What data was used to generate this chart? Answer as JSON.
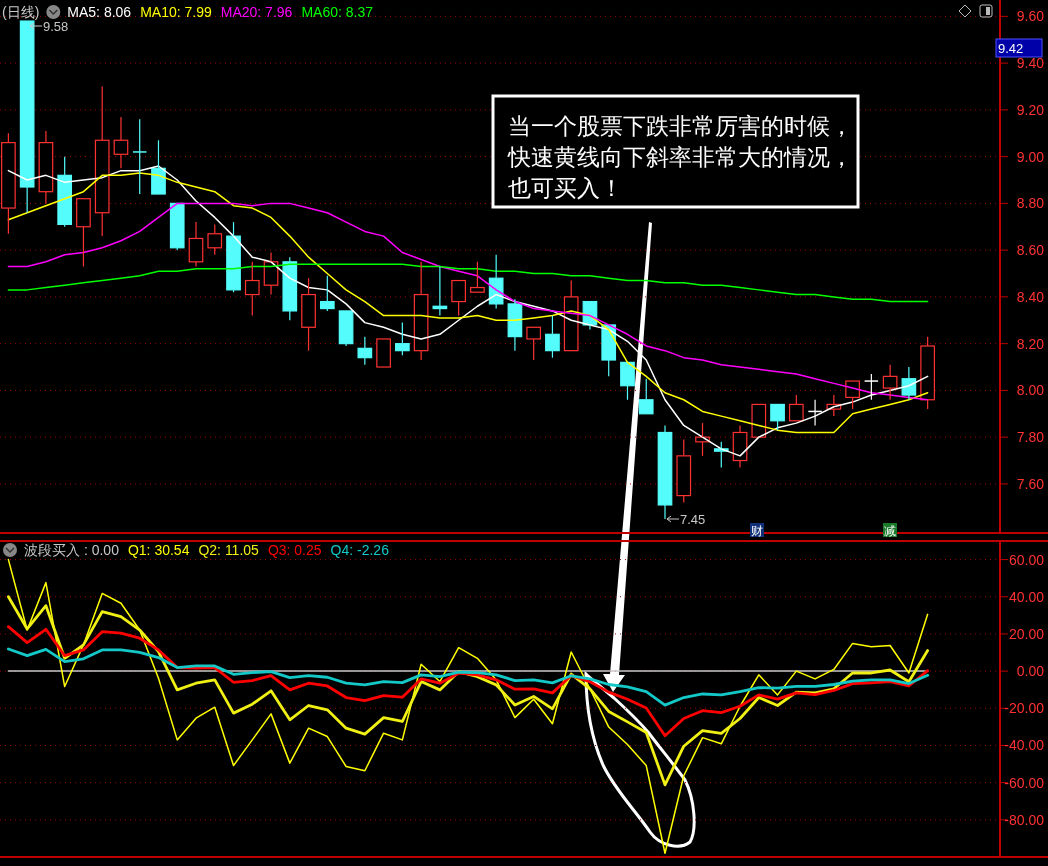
{
  "chart_data": [
    {
      "type": "candlestick",
      "title": "(日线)",
      "categories": [
        null,
        null,
        null,
        null,
        null,
        null,
        null,
        null,
        null,
        null,
        null,
        null,
        null,
        null,
        null,
        null,
        null,
        null,
        null,
        null,
        null,
        null,
        null,
        null,
        null,
        null,
        null,
        null,
        null,
        null,
        null,
        null,
        null,
        null,
        null,
        null,
        null,
        null,
        null,
        null,
        null,
        null,
        null,
        null,
        null,
        null,
        null,
        null,
        null,
        null
      ],
      "ohlc": [
        [
          8.78,
          9.1,
          8.67,
          9.06
        ],
        [
          9.58,
          9.58,
          8.76,
          8.87
        ],
        [
          8.85,
          9.11,
          8.8,
          9.06
        ],
        [
          8.92,
          9.0,
          8.7,
          8.71
        ],
        [
          8.7,
          8.82,
          8.53,
          8.82
        ],
        [
          8.76,
          9.3,
          8.66,
          9.07
        ],
        [
          9.01,
          9.17,
          8.95,
          9.07
        ],
        [
          9.02,
          9.16,
          8.84,
          9.02
        ],
        [
          8.95,
          9.07,
          8.84,
          8.84
        ],
        [
          8.8,
          8.8,
          8.6,
          8.61
        ],
        [
          8.55,
          8.72,
          8.53,
          8.65
        ],
        [
          8.61,
          8.71,
          8.58,
          8.67
        ],
        [
          8.66,
          8.72,
          8.42,
          8.43
        ],
        [
          8.41,
          8.55,
          8.32,
          8.47
        ],
        [
          8.45,
          8.59,
          8.41,
          8.55
        ],
        [
          8.55,
          8.57,
          8.3,
          8.34
        ],
        [
          8.27,
          8.48,
          8.17,
          8.41
        ],
        [
          8.38,
          8.49,
          8.34,
          8.35
        ],
        [
          8.34,
          8.34,
          8.19,
          8.2
        ],
        [
          8.18,
          8.23,
          8.11,
          8.14
        ],
        [
          8.1,
          8.22,
          8.1,
          8.22
        ],
        [
          8.2,
          8.29,
          8.15,
          8.17
        ],
        [
          8.17,
          8.55,
          8.13,
          8.41
        ],
        [
          8.36,
          8.53,
          8.32,
          8.35
        ],
        [
          8.38,
          8.47,
          8.32,
          8.47
        ],
        [
          8.42,
          8.55,
          8.42,
          8.44
        ],
        [
          8.48,
          8.58,
          8.35,
          8.37
        ],
        [
          8.37,
          8.39,
          8.17,
          8.23
        ],
        [
          8.22,
          8.27,
          8.13,
          8.27
        ],
        [
          8.24,
          8.32,
          8.14,
          8.17
        ],
        [
          8.17,
          8.47,
          8.17,
          8.4
        ],
        [
          8.38,
          8.38,
          8.26,
          8.28
        ],
        [
          8.28,
          8.28,
          8.06,
          8.13
        ],
        [
          8.12,
          8.12,
          7.96,
          8.02
        ],
        [
          7.96,
          8.05,
          7.9,
          7.9
        ],
        [
          7.82,
          7.85,
          7.45,
          7.51
        ],
        [
          7.55,
          7.79,
          7.52,
          7.72
        ],
        [
          7.78,
          7.86,
          7.72,
          7.8
        ],
        [
          7.75,
          7.78,
          7.67,
          7.74
        ],
        [
          7.7,
          7.85,
          7.67,
          7.82
        ],
        [
          7.8,
          7.94,
          7.8,
          7.94
        ],
        [
          7.94,
          7.94,
          7.83,
          7.87
        ],
        [
          7.87,
          7.98,
          7.87,
          7.94
        ],
        [
          7.91,
          7.96,
          7.85,
          7.91
        ],
        [
          7.92,
          7.98,
          7.89,
          7.94
        ],
        [
          7.97,
          8.04,
          7.92,
          8.04
        ],
        [
          8.04,
          8.07,
          7.96,
          8.04
        ],
        [
          8.01,
          8.11,
          7.96,
          8.06
        ],
        [
          8.05,
          8.1,
          7.96,
          7.98
        ],
        [
          7.96,
          8.23,
          7.92,
          8.19
        ]
      ],
      "colors": [
        "#ff3232",
        "#54fcfc",
        "#ff3232",
        "#54fcfc",
        "#ff3232",
        "#ff3232",
        "#ff3232",
        "#54fcfc",
        "#54fcfc",
        "#54fcfc",
        "#ff3232",
        "#ff3232",
        "#54fcfc",
        "#ff3232",
        "#ff3232",
        "#54fcfc",
        "#ff3232",
        "#54fcfc",
        "#54fcfc",
        "#54fcfc",
        "#ff3232",
        "#54fcfc",
        "#ff3232",
        "#54fcfc",
        "#ff3232",
        "#ff3232",
        "#54fcfc",
        "#54fcfc",
        "#ff3232",
        "#54fcfc",
        "#ff3232",
        "#54fcfc",
        "#54fcfc",
        "#54fcfc",
        "#54fcfc",
        "#54fcfc",
        "#ff3232",
        "#ff3232",
        "#54fcfc",
        "#ff3232",
        "#ff3232",
        "#54fcfc",
        "#ff3232",
        "#ffffff",
        "#ff3232",
        "#ff3232",
        "#ffffff",
        "#ff3232",
        "#54fcfc",
        "#ff3232"
      ],
      "series": [
        {
          "name": "MA5: 8.06",
          "color": "#ffffff",
          "type": "line",
          "values": [
            8.94,
            8.9,
            8.92,
            8.89,
            8.9,
            8.91,
            8.94,
            8.94,
            8.96,
            8.9,
            8.81,
            8.74,
            8.66,
            8.57,
            8.55,
            8.48,
            8.44,
            8.43,
            8.37,
            8.29,
            8.27,
            8.24,
            8.22,
            8.24,
            8.3,
            8.36,
            8.41,
            8.38,
            8.36,
            8.34,
            8.3,
            8.28,
            8.26,
            8.21,
            8.13,
            7.96,
            7.85,
            7.8,
            7.75,
            7.72,
            7.8,
            7.84,
            7.86,
            7.89,
            7.93,
            7.95,
            7.98,
            8.0,
            8.02,
            8.06
          ]
        },
        {
          "name": "MA10: 7.99",
          "color": "#ffff00",
          "type": "line",
          "values": [
            8.73,
            8.76,
            8.79,
            8.82,
            8.85,
            8.92,
            8.92,
            8.93,
            8.92,
            8.89,
            8.87,
            8.85,
            8.79,
            8.78,
            8.74,
            8.66,
            8.57,
            8.5,
            8.43,
            8.38,
            8.32,
            8.32,
            8.32,
            8.31,
            8.31,
            8.32,
            8.3,
            8.3,
            8.31,
            8.32,
            8.34,
            8.32,
            8.26,
            8.12,
            8.06,
            7.99,
            7.96,
            7.91,
            7.89,
            7.87,
            7.85,
            7.83,
            7.82,
            7.82,
            7.82,
            7.9,
            7.92,
            7.94,
            7.96,
            7.99
          ]
        },
        {
          "name": "MA20: 7.96",
          "color": "#ff00ff",
          "type": "line",
          "values": [
            8.53,
            8.53,
            8.55,
            8.58,
            8.59,
            8.61,
            8.64,
            8.68,
            8.74,
            8.8,
            8.8,
            8.8,
            8.8,
            8.79,
            8.8,
            8.8,
            8.78,
            8.76,
            8.72,
            8.68,
            8.66,
            8.59,
            8.56,
            8.53,
            8.51,
            8.49,
            8.43,
            8.38,
            8.35,
            8.34,
            8.33,
            8.32,
            8.28,
            8.24,
            8.19,
            8.17,
            8.14,
            8.13,
            8.11,
            8.1,
            8.09,
            8.08,
            8.07,
            8.05,
            8.03,
            8.01,
            7.99,
            7.98,
            7.97,
            7.96
          ]
        },
        {
          "name": "MA60: 8.37",
          "color": "#00ff00",
          "type": "line",
          "values": [
            8.43,
            8.43,
            8.44,
            8.45,
            8.46,
            8.47,
            8.48,
            8.49,
            8.51,
            8.51,
            8.52,
            8.52,
            8.52,
            8.53,
            8.53,
            8.54,
            8.54,
            8.54,
            8.54,
            8.54,
            8.54,
            8.54,
            8.53,
            8.53,
            8.52,
            8.52,
            8.51,
            8.51,
            8.5,
            8.5,
            8.49,
            8.49,
            8.48,
            8.47,
            8.47,
            8.46,
            8.46,
            8.45,
            8.45,
            8.44,
            8.43,
            8.42,
            8.41,
            8.41,
            8.4,
            8.39,
            8.39,
            8.38,
            8.38,
            8.38
          ]
        }
      ],
      "ylim": [
        7.39,
        9.67
      ],
      "yticks": [
        {
          "value": 7.6,
          "label": "7.60"
        },
        {
          "value": 7.8,
          "label": "7.80"
        },
        {
          "value": 8.0,
          "label": "8.00"
        },
        {
          "value": 8.2,
          "label": "8.20"
        },
        {
          "value": 8.4,
          "label": "8.40"
        },
        {
          "value": 8.6,
          "label": "8.60"
        },
        {
          "value": 8.8,
          "label": "8.80"
        },
        {
          "value": 9.0,
          "label": "9.00"
        },
        {
          "value": 9.2,
          "label": "9.20"
        },
        {
          "value": 9.4,
          "label": "9.40"
        },
        {
          "value": 9.6,
          "label": "9.60"
        }
      ],
      "grid": "y",
      "legend": "top left",
      "annotations": [
        "当一个股票下跌非常厉害的时候，快速黄线向下斜率非常大的情况，也可买入！",
        "9.58",
        "7.45",
        "9.42",
        "财",
        "减"
      ]
    },
    {
      "type": "line",
      "categories": [
        null,
        null,
        null,
        null,
        null,
        null,
        null,
        null,
        null,
        null,
        null,
        null,
        null,
        null,
        null,
        null,
        null,
        null,
        null,
        null,
        null,
        null,
        null,
        null,
        null,
        null,
        null,
        null,
        null,
        null,
        null,
        null,
        null,
        null,
        null,
        null,
        null,
        null,
        null,
        null,
        null,
        null,
        null,
        null,
        null,
        null,
        null,
        null,
        null,
        null
      ],
      "series": [
        {
          "name": "波段买入 : 0.00",
          "color": "#c8c8c8",
          "values": [
            0,
            0,
            0,
            0,
            0,
            0,
            0,
            0,
            0,
            0,
            0,
            0,
            0,
            0,
            0,
            0,
            0,
            0,
            0,
            0,
            0,
            0,
            0,
            0,
            0,
            0,
            0,
            0,
            0,
            0,
            0,
            0,
            0,
            0,
            0,
            0,
            0,
            0,
            0,
            0,
            0,
            0,
            0,
            0,
            0,
            0,
            0,
            0,
            0,
            0
          ]
        },
        {
          "name": "Q1: 30.54",
          "color": "#ffff00",
          "values": [
            60,
            22.1,
            47.6,
            -8.3,
            14.1,
            41.8,
            36.5,
            22.1,
            -3.8,
            -37,
            -25.3,
            -19.4,
            -50.8,
            -37,
            -23,
            -49.5,
            -30.7,
            -35.2,
            -51.3,
            -53.6,
            -33.4,
            -37,
            3.7,
            -5.6,
            12.6,
            6.9,
            -4.7,
            -25,
            -15.1,
            -28.3,
            10.3,
            -9.5,
            -30.1,
            -39.5,
            -50.8,
            -98,
            -56.3,
            -35.8,
            -39.1,
            -18.9,
            -2,
            -12.8,
            0,
            -4.2,
            0.9,
            14.9,
            13.1,
            13.8,
            -1,
            30.54
          ]
        },
        {
          "name": "Q2: 11.05",
          "color": "#f0f014",
          "values": [
            40,
            22.7,
            35.2,
            6.9,
            14.1,
            32,
            29.3,
            22.1,
            10.5,
            -10.1,
            -6.5,
            -4.7,
            -22.6,
            -17.8,
            -10.6,
            -26.2,
            -18.5,
            -20.8,
            -30.7,
            -33.9,
            -25,
            -27.1,
            -5.6,
            -10.1,
            -0.3,
            -3,
            -7.4,
            -18.2,
            -13.6,
            -20.3,
            -1.6,
            -9.5,
            -21.7,
            -27.3,
            -33,
            -61.2,
            -40.4,
            -32,
            -33.5,
            -25.5,
            -14.2,
            -18.5,
            -11.3,
            -11.7,
            -9.5,
            -1,
            -1,
            0.6,
            -5.7,
            11.05
          ]
        },
        {
          "name": "Q3: 0.25",
          "color": "#ff0000",
          "values": [
            23.9,
            15.3,
            22.5,
            8.3,
            11.4,
            21.2,
            20.4,
            17.7,
            11.4,
            1.9,
            1.6,
            1.9,
            -6,
            -5.1,
            -2.4,
            -10.1,
            -6.5,
            -8,
            -14.2,
            -15.9,
            -13.2,
            -14,
            -4.2,
            -6.5,
            -1.1,
            -2,
            -4.7,
            -9.7,
            -9.5,
            -11.7,
            -2.4,
            -5.7,
            -11.3,
            -15.1,
            -19.8,
            -34.8,
            -25.5,
            -21.3,
            -22.3,
            -18.9,
            -12.8,
            -15.1,
            -11.7,
            -12.7,
            -10.4,
            -6.7,
            -6.3,
            -5.7,
            -8,
            0.25
          ]
        },
        {
          "name": "Q4: -2.26",
          "color": "#14c8c8",
          "values": [
            11.9,
            8.3,
            11.7,
            5.1,
            6.6,
            11.4,
            11.4,
            10.1,
            7.3,
            1.9,
            2.8,
            2.8,
            -1.7,
            -0.8,
            -0.3,
            -3.5,
            -2.4,
            -3.3,
            -6.5,
            -7.4,
            -5.6,
            -6.2,
            -2,
            -3,
            -0.6,
            -0.8,
            -2,
            -5.1,
            -4.7,
            -6.3,
            -2.5,
            -4.2,
            -7.2,
            -8.5,
            -11,
            -18.3,
            -14.2,
            -12.3,
            -12.8,
            -11,
            -8.9,
            -9.1,
            -8.2,
            -8.2,
            -7.2,
            -5.4,
            -4.7,
            -4.7,
            -6.7,
            -2.26
          ]
        }
      ],
      "ylim": [
        -100,
        70
      ],
      "yticks": [
        {
          "value": -80,
          "label": "-80.00"
        },
        {
          "value": -60,
          "label": "-60.00"
        },
        {
          "value": -40,
          "label": "-40.00"
        },
        {
          "value": -20,
          "label": "-20.00"
        },
        {
          "value": 0,
          "label": "0.00"
        },
        {
          "value": 20,
          "label": "20.00"
        },
        {
          "value": 40,
          "label": "40.00"
        },
        {
          "value": 60,
          "label": "60.00"
        }
      ],
      "grid": "y",
      "legend": "top left"
    }
  ]
}
